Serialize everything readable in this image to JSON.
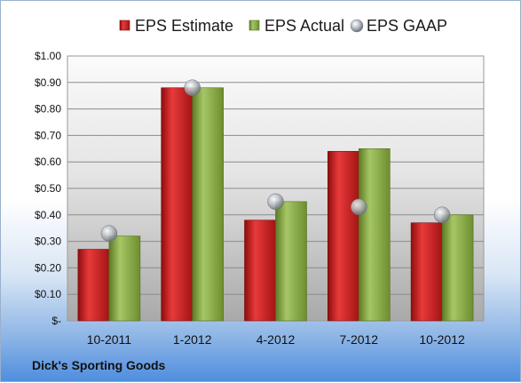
{
  "company": "Dick's Sporting Goods",
  "chart_data": {
    "type": "bar",
    "title": "",
    "xlabel": "",
    "ylabel": "",
    "categories": [
      "10-2011",
      "1-2012",
      "4-2012",
      "7-2012",
      "10-2012"
    ],
    "series": [
      {
        "name": "EPS Estimate",
        "kind": "bar",
        "color": "#cc1f1f",
        "values": [
          0.27,
          0.88,
          0.38,
          0.64,
          0.37
        ]
      },
      {
        "name": "EPS Actual",
        "kind": "bar",
        "color": "#8ab045",
        "values": [
          0.32,
          0.88,
          0.45,
          0.65,
          0.4
        ]
      },
      {
        "name": "EPS GAAP",
        "kind": "marker",
        "color": "#a8aeb5",
        "values": [
          0.33,
          0.88,
          0.45,
          0.43,
          0.4
        ]
      }
    ],
    "ylim": [
      0,
      1.0
    ],
    "yticks": [
      0,
      0.1,
      0.2,
      0.3,
      0.4,
      0.5,
      0.6,
      0.7,
      0.8,
      0.9,
      1.0
    ],
    "ytick_labels": [
      "$-",
      "$0.10",
      "$0.20",
      "$0.30",
      "$0.40",
      "$0.50",
      "$0.60",
      "$0.70",
      "$0.80",
      "$0.90",
      "$1.00"
    ],
    "grid": true,
    "legend_position": "top"
  }
}
